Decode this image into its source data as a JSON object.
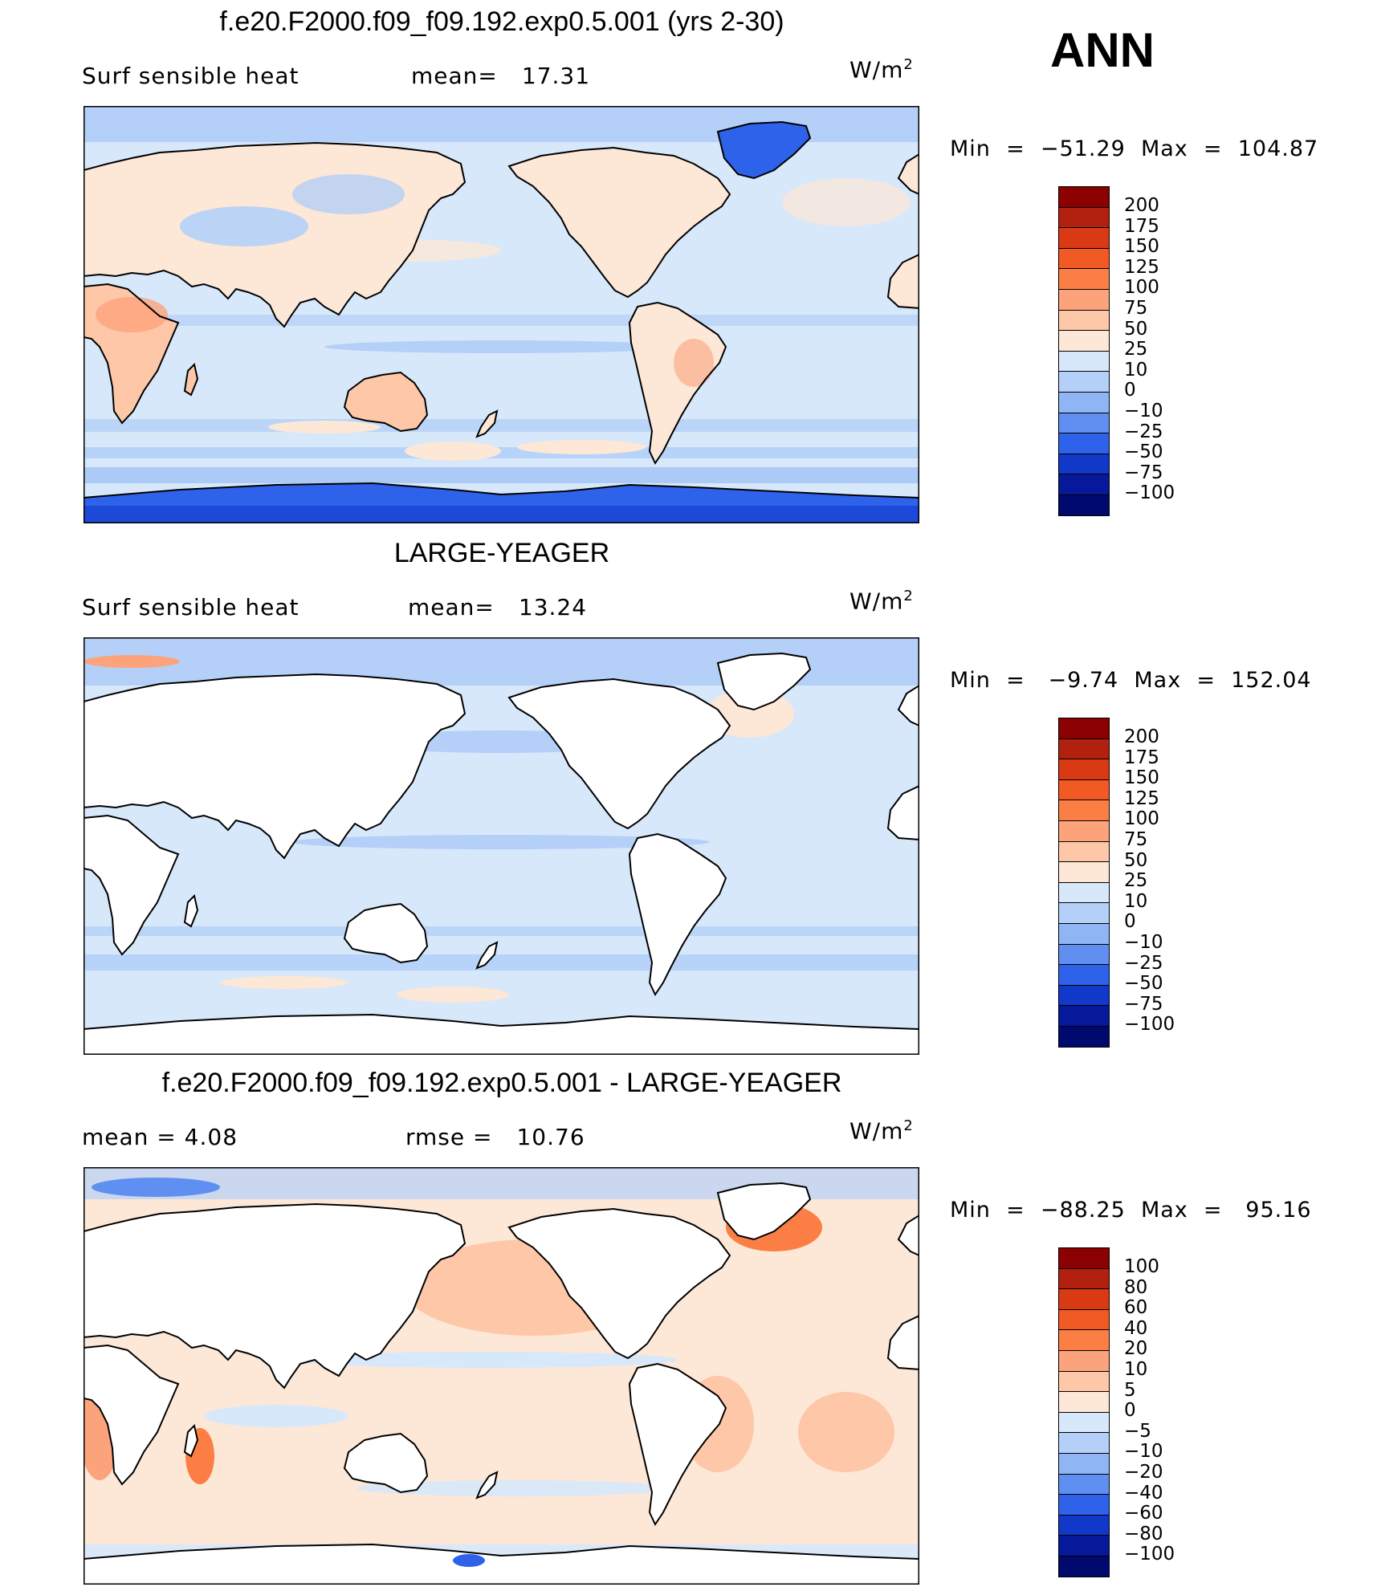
{
  "season": "ANN",
  "panels": [
    {
      "title": "f.e20.F2000.f09_f09.192.exp0.5.001 (yrs 2-30)",
      "left_label": "Surf  sensible  heat",
      "mid_label": "mean=",
      "mid_value": "17.31",
      "units": "W/m",
      "units_sup": "2",
      "min_max": "Min  =  −51.29  Max  =  104.87",
      "colorbar": {
        "labels": [
          "200",
          "175",
          "150",
          "125",
          "100",
          "75",
          "50",
          "25",
          "10",
          "0",
          "−10",
          "−25",
          "−50",
          "−75",
          "−100"
        ],
        "colors": [
          "#8b0000",
          "#b2200f",
          "#d93a14",
          "#f25a24",
          "#fb7f45",
          "#fca37c",
          "#fdc7a8",
          "#fde7d6",
          "#d7e8fb",
          "#b4d0f8",
          "#8fb5f4",
          "#5f8ff0",
          "#2f62ea",
          "#1038c9",
          "#06199a",
          "#000a6e"
        ]
      }
    },
    {
      "title": "LARGE-YEAGER",
      "left_label": "Surf  sensible  heat",
      "mid_label": "mean=",
      "mid_value": "13.24",
      "units": "W/m",
      "units_sup": "2",
      "min_max": "Min  =   −9.74  Max  =  152.04",
      "colorbar": {
        "labels": [
          "200",
          "175",
          "150",
          "125",
          "100",
          "75",
          "50",
          "25",
          "10",
          "0",
          "−10",
          "−25",
          "−50",
          "−75",
          "−100"
        ],
        "colors": [
          "#8b0000",
          "#b2200f",
          "#d93a14",
          "#f25a24",
          "#fb7f45",
          "#fca37c",
          "#fdc7a8",
          "#fde7d6",
          "#d7e8fb",
          "#b4d0f8",
          "#8fb5f4",
          "#5f8ff0",
          "#2f62ea",
          "#1038c9",
          "#06199a",
          "#000a6e"
        ]
      }
    },
    {
      "title": "f.e20.F2000.f09_f09.192.exp0.5.001 - LARGE-YEAGER",
      "left_label": "mean  =      4.08",
      "mid_label": "rmse  =",
      "mid_value": "10.76",
      "units": "W/m",
      "units_sup": "2",
      "min_max": "Min  =  −88.25  Max  =   95.16",
      "colorbar": {
        "labels": [
          "100",
          "80",
          "60",
          "40",
          "20",
          "10",
          "5",
          "0",
          "−5",
          "−10",
          "−20",
          "−40",
          "−60",
          "−80",
          "−100"
        ],
        "colors": [
          "#8b0000",
          "#b2200f",
          "#d93a14",
          "#f25a24",
          "#fb7f45",
          "#fca37c",
          "#fdc7a8",
          "#fde7d6",
          "#d7e8fb",
          "#b4d0f8",
          "#8fb5f4",
          "#5f8ff0",
          "#2f62ea",
          "#1038c9",
          "#06199a",
          "#000a6e"
        ]
      }
    }
  ]
}
